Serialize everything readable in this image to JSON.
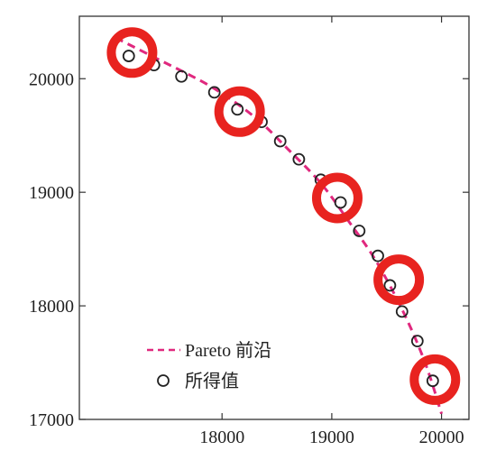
{
  "chart_data": {
    "type": "scatter",
    "xlim": [
      16700,
      20250
    ],
    "ylim": [
      17000,
      20550
    ],
    "x_ticks": [
      18000,
      19000,
      20000
    ],
    "y_ticks": [
      17000,
      18000,
      19000,
      20000
    ],
    "x_tick_labels": [
      "18000",
      "19000",
      "20000"
    ],
    "y_tick_labels": [
      "17000",
      "18000",
      "19000",
      "20000"
    ],
    "grid": false,
    "legend_position": "bottom-left",
    "series": [
      {
        "name": "Pareto 前沿",
        "kind": "dashed-line",
        "color": "#e0287e",
        "x": [
          17030,
          17400,
          17900,
          18300,
          18600,
          18900,
          19150,
          19400,
          19650,
          19850,
          20000
        ],
        "y": [
          20360,
          20180,
          19930,
          19660,
          19380,
          19080,
          18750,
          18400,
          17950,
          17500,
          17050
        ]
      },
      {
        "name": "所得值",
        "kind": "open-circle",
        "color": "#222222",
        "x": [
          17150,
          17380,
          17630,
          17930,
          18140,
          18360,
          18530,
          18700,
          18900,
          19080,
          19250,
          19420,
          19530,
          19640,
          19780,
          19920
        ],
        "y": [
          20200,
          20120,
          20020,
          19880,
          19730,
          19620,
          19450,
          19290,
          19110,
          18910,
          18660,
          18440,
          18180,
          17950,
          17690,
          17340
        ]
      }
    ],
    "highlights": {
      "kind": "red-ring",
      "color": "#e8231f",
      "x": [
        17180,
        18160,
        19050,
        19610,
        19940
      ],
      "y": [
        20230,
        19710,
        18950,
        18230,
        17350
      ]
    }
  }
}
